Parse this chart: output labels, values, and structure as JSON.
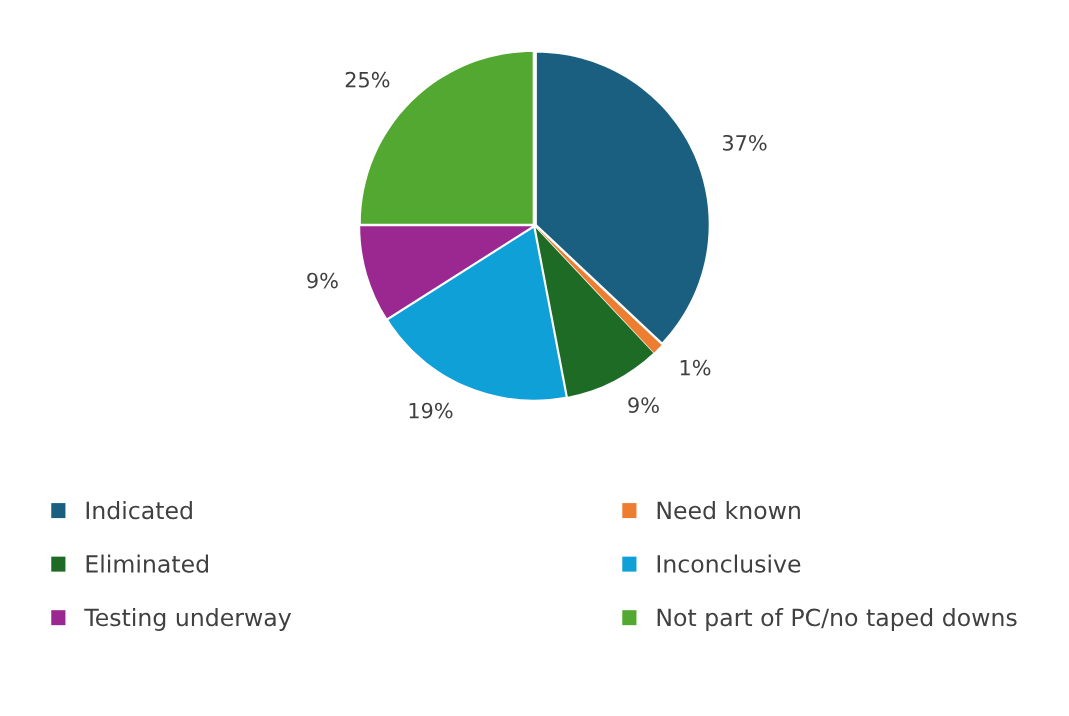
{
  "chart_data": {
    "type": "pie",
    "categories": [
      "Indicated",
      "Need known",
      "Eliminated",
      "Inconclusive",
      "Testing underway",
      "Not part of PC/no taped downs"
    ],
    "values": [
      37,
      1,
      9,
      19,
      9,
      25
    ],
    "value_labels": [
      "37%",
      "1%",
      "9%",
      "19%",
      "9%",
      "25%"
    ],
    "colors": [
      "#1a5e80",
      "#ed7d31",
      "#1e6b26",
      "#10a0d8",
      "#9b2890",
      "#52a830"
    ],
    "legend": "bottom"
  }
}
